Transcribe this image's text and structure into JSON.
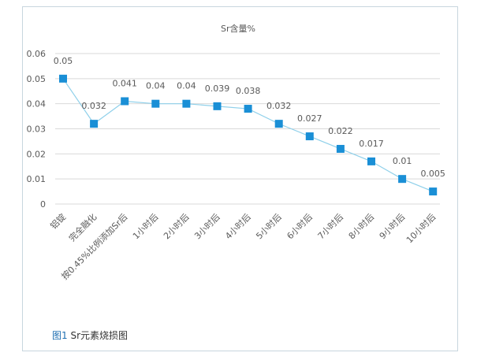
{
  "chart_data": {
    "type": "line",
    "title": "Sr含量%",
    "categories": [
      "铝锭",
      "完全融化",
      "按0.45%比例添加Sr后",
      "1小时后",
      "2小时后",
      "3小时后",
      "4小时后",
      "5小时后",
      "6小时后",
      "7小时后",
      "8小时后",
      "9小时后",
      "10小时后"
    ],
    "series": [
      {
        "values": [
          0.05,
          0.032,
          0.041,
          0.04,
          0.04,
          0.039,
          0.038,
          0.032,
          0.027,
          0.022,
          0.017,
          0.01,
          0.005
        ]
      }
    ],
    "data_labels": [
      "0.05",
      "0.032",
      "0.041",
      "0.04",
      "0.04",
      "0.039",
      "0.038",
      "0.032",
      "0.027",
      "0.022",
      "0.017",
      "0.01",
      "0.005"
    ],
    "y_ticks": [
      "0",
      "0.01",
      "0.02",
      "0.03",
      "0.04",
      "0.05",
      "0.06"
    ],
    "ylim": [
      0,
      0.06
    ],
    "grid": true,
    "colors": {
      "line": "#8fd0ea",
      "marker": "#1a8fd6",
      "grid": "#d9d9d9",
      "text": "#595959"
    }
  },
  "caption": {
    "fig_label": "图1",
    "text": " Sr元素烧损图"
  }
}
